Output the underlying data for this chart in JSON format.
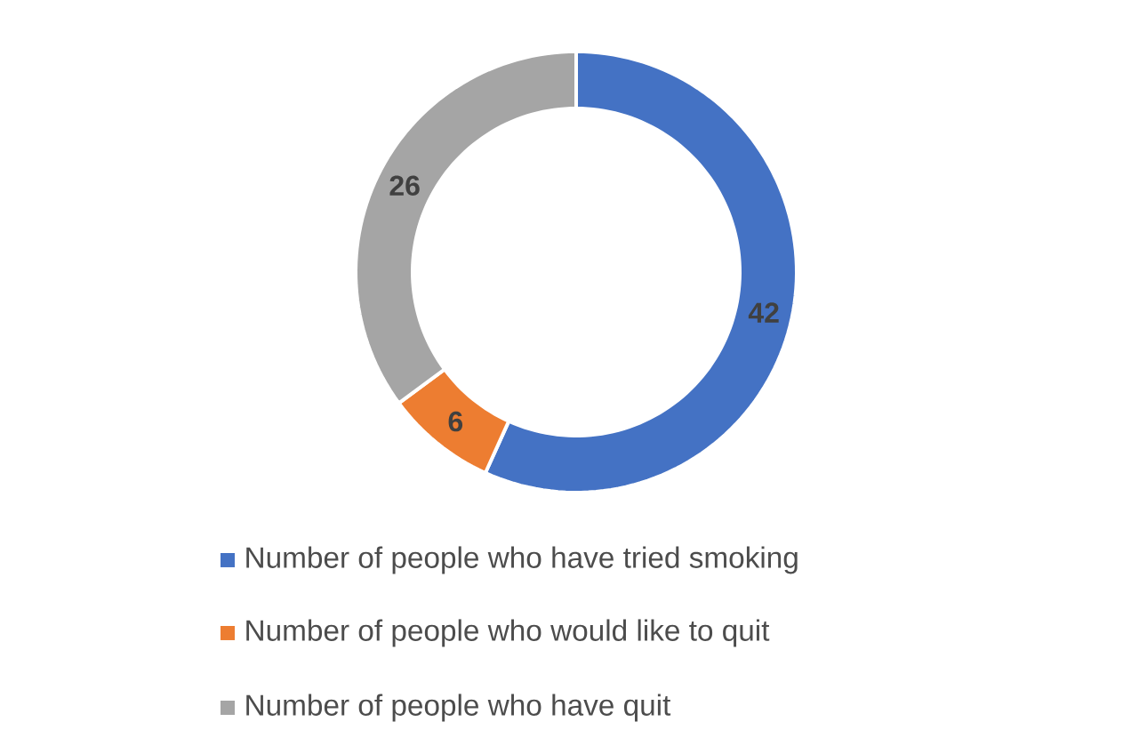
{
  "chart_data": {
    "type": "donut",
    "categories": [
      "Number of people who have tried smoking",
      "Number of people who would like to quit",
      "Number of people who have quit"
    ],
    "values": [
      42,
      6,
      26
    ],
    "colors": [
      "#4472c4",
      "#ed7d31",
      "#a5a5a5"
    ],
    "data_labels": true,
    "legend": "bottom"
  }
}
